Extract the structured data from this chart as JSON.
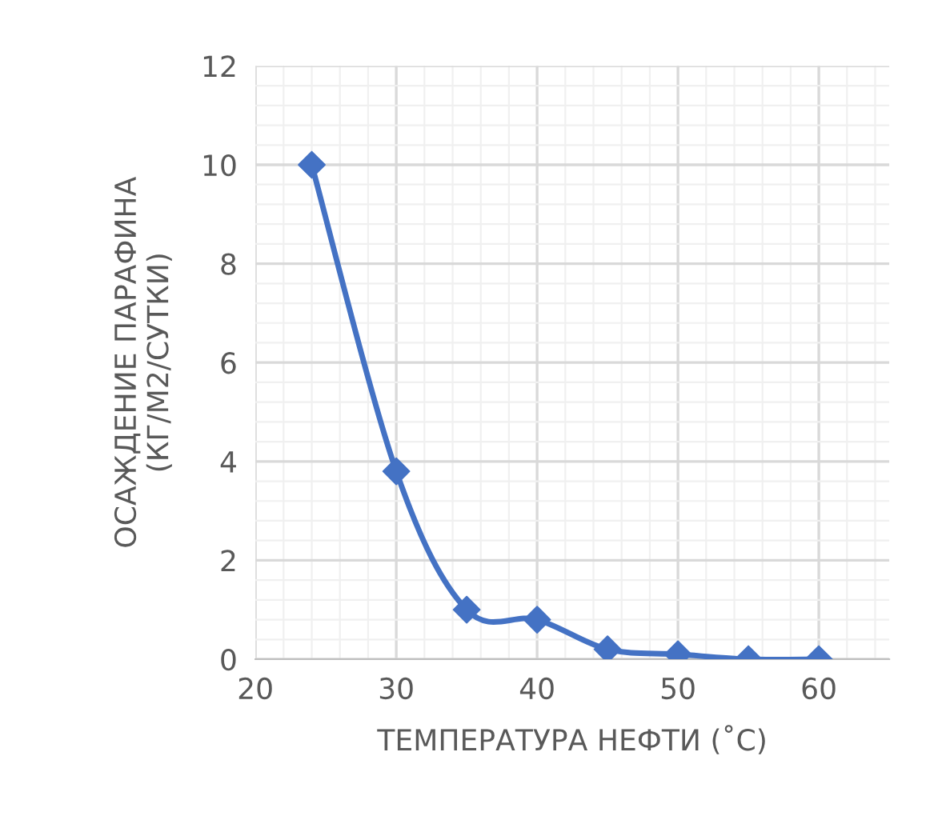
{
  "chart_data": {
    "type": "line",
    "xlabel": "ТЕМПЕРАТУРА НЕФТИ (˚C)",
    "ylabel": "ОСАЖДЕНИЕ ПАРАФИНА\n(КГ/М2/СУТКИ)",
    "x": [
      24,
      30,
      35,
      40,
      45,
      50,
      55,
      60
    ],
    "series": [
      {
        "color": "#4472c4",
        "values": [
          10,
          3.8,
          1,
          0.8,
          0.2,
          0.1,
          0,
          0
        ]
      }
    ],
    "xlim": [
      20,
      65
    ],
    "xticks": [
      20,
      30,
      40,
      50,
      60
    ],
    "ylim": [
      0,
      12
    ],
    "yticks": [
      0,
      2,
      4,
      6,
      8,
      10,
      12
    ],
    "grid": true,
    "marker": "diamond",
    "line_style": "solid",
    "legend": false
  }
}
